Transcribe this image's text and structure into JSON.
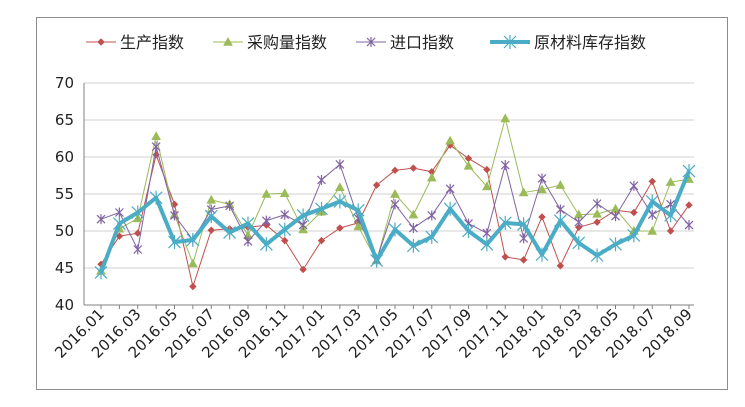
{
  "chart_data": {
    "type": "line",
    "title": "",
    "xlabel": "",
    "ylabel": "",
    "ylim": [
      40,
      70
    ],
    "y_ticks": [
      "40",
      "45",
      "50",
      "55",
      "60",
      "65",
      "70"
    ],
    "grid": "horizontal",
    "legend_position": "top",
    "categories": [
      "2016.01",
      "2016.02",
      "2016.03",
      "2016.04",
      "2016.05",
      "2016.06",
      "2016.07",
      "2016.08",
      "2016.09",
      "2016.10",
      "2016.11",
      "2016.12",
      "2017.01",
      "2017.02",
      "2017.03",
      "2017.04",
      "2017.05",
      "2017.06",
      "2017.07",
      "2017.08",
      "2017.09",
      "2017.10",
      "2017.11",
      "2017.12",
      "2018.01",
      "2018.02",
      "2018.03",
      "2018.04",
      "2018.05",
      "2018.06",
      "2018.07",
      "2018.08",
      "2018.09"
    ],
    "x_tick_labels": [
      "2016.01",
      "2016.03",
      "2016.05",
      "2016.07",
      "2016.09",
      "2016.11",
      "2017.01",
      "2017.03",
      "2017.05",
      "2017.07",
      "2017.09",
      "2017.11",
      "2018.01",
      "2018.03",
      "2018.05",
      "2018.07",
      "2018.09"
    ],
    "series": [
      {
        "name": "生产指数",
        "color": "#c0504d",
        "marker": "diamond",
        "width": 1,
        "values": [
          45.5,
          49.3,
          49.7,
          60.3,
          53.6,
          42.5,
          50.1,
          50.3,
          50.5,
          50.8,
          48.7,
          44.8,
          48.7,
          50.4,
          51.1,
          56.2,
          58.2,
          58.5,
          58.0,
          61.6,
          59.8,
          58.3,
          46.5,
          46.1,
          51.9,
          45.3,
          50.5,
          51.2,
          52.8,
          52.5,
          56.7,
          50.0,
          53.5
        ]
      },
      {
        "name": "采购量指数",
        "color": "#9bbb59",
        "marker": "triangle",
        "width": 1,
        "values": [
          44.6,
          50.3,
          51.7,
          62.8,
          52.2,
          45.6,
          54.2,
          53.6,
          49.4,
          55.0,
          55.1,
          50.2,
          52.6,
          55.9,
          50.6,
          46.0,
          55.0,
          52.2,
          57.2,
          62.2,
          58.8,
          56.0,
          65.2,
          55.2,
          55.6,
          56.2,
          52.2,
          52.3,
          53.0,
          50.0,
          50.0,
          56.6,
          57.0
        ]
      },
      {
        "name": "进口指数",
        "color": "#8064a2",
        "marker": "star",
        "width": 1,
        "values": [
          51.6,
          52.5,
          47.5,
          61.4,
          52.1,
          48.8,
          52.9,
          53.4,
          48.6,
          51.4,
          52.2,
          50.8,
          56.9,
          59.0,
          51.7,
          46.1,
          53.6,
          50.4,
          52.1,
          55.7,
          51.0,
          49.7,
          58.9,
          49.0,
          57.1,
          52.9,
          51.2,
          53.7,
          52.0,
          56.1,
          52.2,
          53.6,
          50.8
        ]
      },
      {
        "name": "原材料库存指数",
        "color": "#4bacc6",
        "marker": "star",
        "width": 4,
        "values": [
          44.4,
          51.0,
          52.5,
          54.5,
          48.5,
          48.8,
          52.0,
          49.8,
          51.0,
          48.2,
          50.2,
          52.1,
          53.0,
          54.0,
          52.8,
          46.0,
          50.2,
          48.0,
          49.2,
          53.0,
          50.0,
          48.2,
          51.1,
          50.9,
          46.8,
          51.4,
          48.4,
          46.7,
          48.2,
          49.4,
          54.0,
          52.1,
          58.1
        ]
      }
    ]
  }
}
